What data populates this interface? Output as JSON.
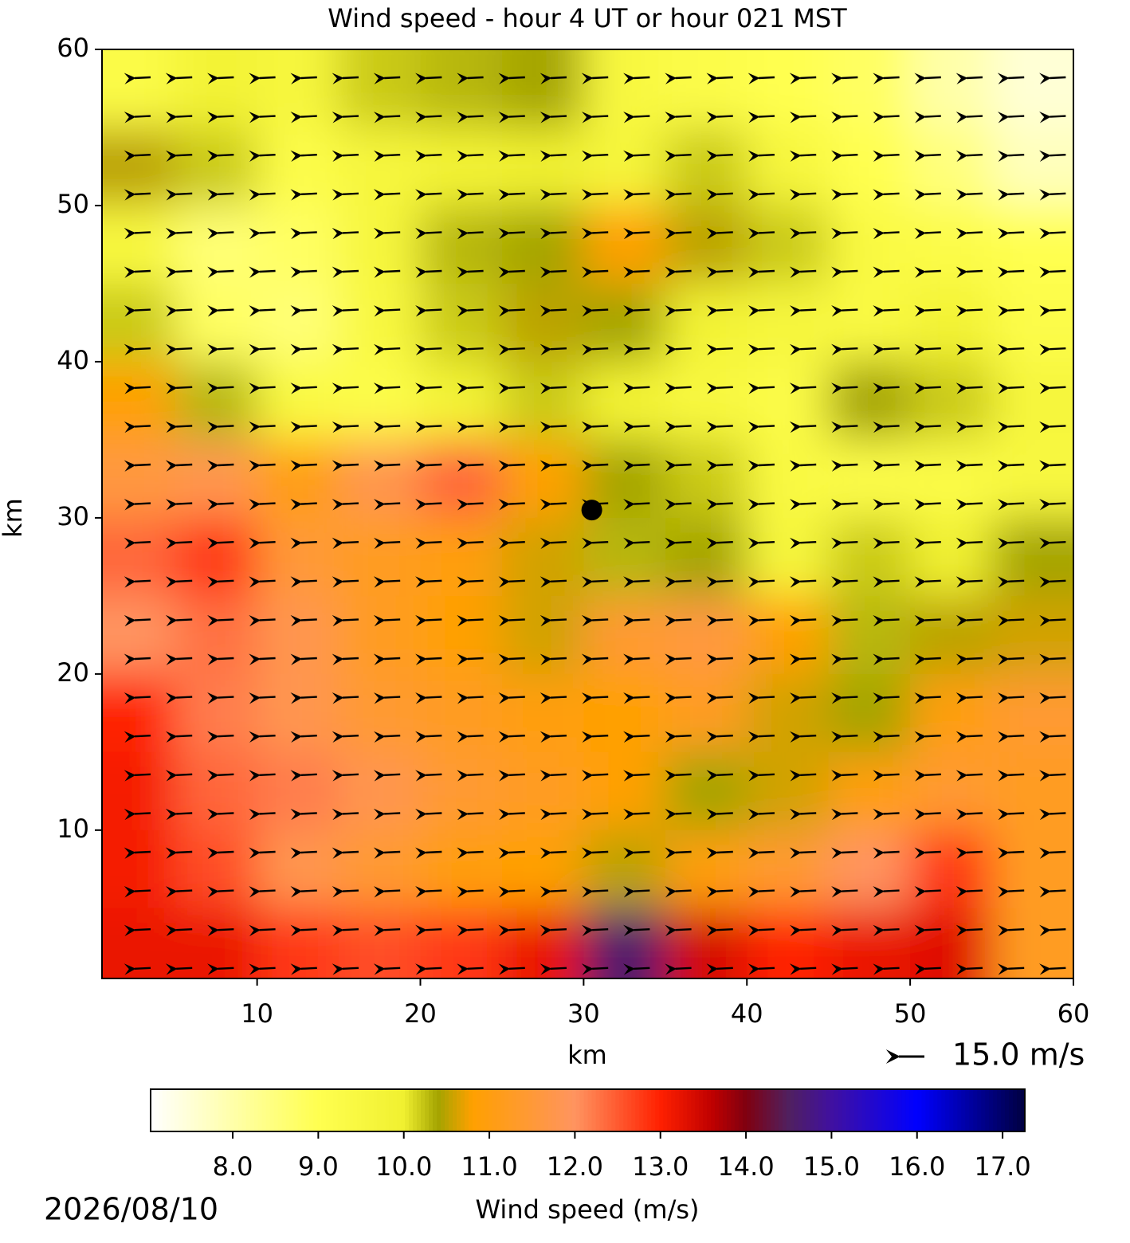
{
  "chart_data": {
    "type": "field",
    "title": "Wind speed - hour 4 UT or hour 021 MST",
    "x_label": "km",
    "y_label": "km",
    "xlim": [
      0.5,
      60
    ],
    "ylim": [
      0.5,
      60
    ],
    "xticks": [
      10,
      20,
      30,
      40,
      50,
      60
    ],
    "yticks": [
      10,
      20,
      30,
      40,
      50,
      60
    ],
    "field": {
      "x": [
        2.5,
        7.5,
        12.5,
        17.5,
        22.5,
        27.5,
        32.5,
        37.5,
        42.5,
        47.5,
        52.5,
        57.5
      ],
      "y": [
        57.5,
        52.5,
        47.5,
        42.5,
        37.5,
        32.5,
        27.5,
        22.5,
        17.5,
        12.5,
        7.5,
        2.5
      ],
      "values": [
        [
          9.3,
          9.8,
          9.6,
          10.2,
          10.3,
          10.4,
          9.5,
          9.2,
          9.0,
          8.8,
          8.0,
          7.5
        ],
        [
          10.5,
          10.2,
          9.2,
          9.6,
          9.8,
          10.0,
          9.7,
          10.2,
          9.6,
          9.0,
          8.5,
          7.8
        ],
        [
          9.5,
          8.6,
          8.8,
          9.6,
          10.3,
          10.4,
          10.8,
          10.5,
          10.2,
          9.4,
          9.2,
          9.0
        ],
        [
          10.2,
          8.8,
          8.6,
          9.5,
          10.2,
          10.5,
          10.4,
          9.8,
          9.6,
          9.4,
          9.8,
          9.2
        ],
        [
          10.8,
          10.3,
          9.4,
          9.2,
          9.8,
          10.2,
          9.8,
          9.5,
          9.3,
          10.4,
          10.2,
          9.6
        ],
        [
          11.6,
          11.8,
          11.0,
          11.8,
          12.4,
          10.8,
          10.4,
          10.2,
          9.4,
          9.2,
          9.3,
          9.5
        ],
        [
          12.4,
          12.8,
          11.5,
          11.2,
          11.0,
          10.6,
          10.3,
          10.4,
          9.6,
          10.2,
          10.0,
          10.4
        ],
        [
          12.0,
          12.3,
          11.8,
          11.2,
          10.8,
          10.6,
          11.4,
          11.6,
          10.8,
          10.3,
          10.5,
          10.6
        ],
        [
          13.0,
          12.2,
          11.8,
          11.4,
          11.2,
          11.0,
          10.8,
          11.2,
          10.6,
          10.4,
          11.0,
          11.4
        ],
        [
          13.1,
          12.4,
          12.2,
          11.8,
          11.4,
          11.2,
          10.8,
          10.4,
          10.6,
          11.0,
          11.4,
          11.2
        ],
        [
          13.1,
          12.6,
          11.8,
          11.4,
          11.0,
          10.8,
          10.5,
          11.0,
          11.4,
          12.0,
          12.8,
          11.2
        ],
        [
          13.2,
          13.2,
          12.8,
          12.6,
          12.8,
          13.2,
          14.6,
          13.4,
          13.0,
          13.2,
          13.3,
          11.2
        ]
      ]
    },
    "marker": {
      "x": 30.5,
      "y": 30.5,
      "color": "#000000"
    },
    "quiver_key": "15.0 m/s",
    "colorbar": {
      "label": "Wind speed (m/s)",
      "clim": [
        7.04,
        17.26
      ],
      "ticks": [
        {
          "value": 8,
          "label": "8.0"
        },
        {
          "value": 9,
          "label": "9.0"
        },
        {
          "value": 10,
          "label": "10.0"
        },
        {
          "value": 11,
          "label": "11.0"
        },
        {
          "value": 12,
          "label": "12.0"
        },
        {
          "value": 13,
          "label": "13.0"
        },
        {
          "value": 14,
          "label": "14.0"
        },
        {
          "value": 15,
          "label": "15.0"
        },
        {
          "value": 16,
          "label": "16.0"
        },
        {
          "value": 17,
          "label": "17.0"
        }
      ],
      "colormap": [
        {
          "value": 7.04,
          "color": "#ffffff"
        },
        {
          "value": 9.0,
          "color": "#ffff50"
        },
        {
          "value": 10.0,
          "color": "#f0f030"
        },
        {
          "value": 10.4,
          "color": "#a4a400"
        },
        {
          "value": 10.8,
          "color": "#ffa000"
        },
        {
          "value": 12.0,
          "color": "#ff9460"
        },
        {
          "value": 13.0,
          "color": "#ff2000"
        },
        {
          "value": 13.6,
          "color": "#c00000"
        },
        {
          "value": 14.0,
          "color": "#800010"
        },
        {
          "value": 14.5,
          "color": "#502060"
        },
        {
          "value": 15.0,
          "color": "#4010a0"
        },
        {
          "value": 16.0,
          "color": "#0000ff"
        },
        {
          "value": 17.26,
          "color": "#000040"
        }
      ]
    },
    "date": "2026/08/10"
  }
}
